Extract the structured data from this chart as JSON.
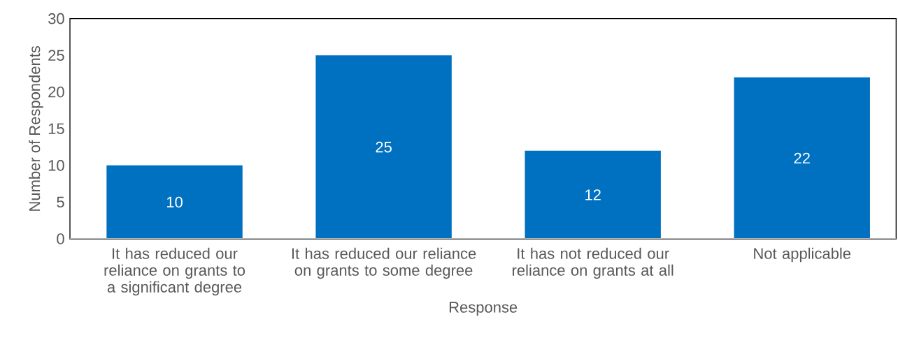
{
  "chart_data": {
    "type": "bar",
    "xlabel": "Response",
    "ylabel": "Number of Respondents",
    "categories": [
      "It has reduced our reliance on grants to a significant degree",
      "It has reduced our reliance on grants to some degree",
      "It has not reduced our reliance on grants at all",
      "Not applicable"
    ],
    "values": [
      10,
      25,
      12,
      22
    ],
    "color": "#0070c0",
    "data_labels": true,
    "ylim": [
      0,
      30
    ],
    "yticks": [
      0,
      5,
      10,
      15,
      20,
      25,
      30
    ],
    "grid": false
  }
}
